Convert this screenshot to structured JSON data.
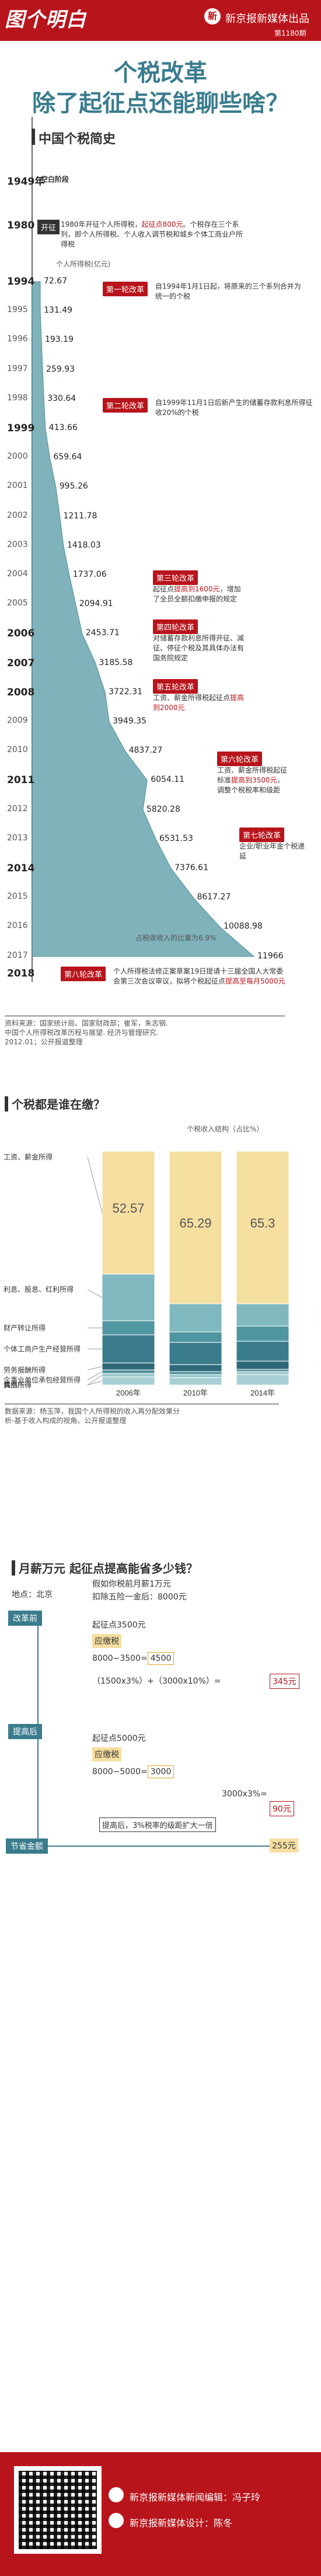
{
  "header": {
    "logo": "图个明白",
    "publisher": "新京报新媒体出品",
    "issue": "第1180期",
    "mark": "新"
  },
  "title": {
    "line1": "个税改革",
    "line2": "除了起征点还能聊些啥？"
  },
  "history": {
    "section_title": "中国个税简史",
    "y1949": "1949年",
    "blank_period": "空白阶段",
    "y1980": "1980",
    "tag_start": "开征",
    "note1980_a": "1980年开征个人所得税，",
    "note1980_red": "起征点800元",
    "note1980_b": "。个税存在三个系列，即个人所得税、个人收入调节税和城乡个体工商业户所得税",
    "unit_label": "个人所得税(亿元)",
    "y1994": "1994",
    "tag1": "第一轮改革",
    "note1994": "自1994年1月1日起，将原来的三个系列合并为统一的个税",
    "y1999": "1999",
    "tag2": "第二轮改革",
    "note1999": "自1999年11月1日后新产生的储蓄存款利息所得征收20%的个税",
    "y2005": "2005",
    "tag3": "第三轮改革",
    "note2005_a": "起征点",
    "note2005_red": "提高到1600元",
    "note2005_b": "，增加了全员全额扣缴申报的规定",
    "y2007": "2007",
    "tag4": "第四轮改革",
    "note2007": "对储蓄存款利息所得开征、减征、停征个税及其具体办法有国务院规定",
    "y2008": "2008",
    "tag5": "第五轮改革",
    "note2008_a": "工资、薪金所得税起征点",
    "note2008_red": "提高到2000元",
    "y2011": "2011",
    "tag6": "第六轮改革",
    "note2011_a": "工资、薪金所得税起征标准",
    "note2011_red": "提高到3500元",
    "note2011_b": "，调整个税税率和级距",
    "y2014": "2014",
    "tag7": "第七轮改革",
    "note2014": "企业/职业年金个税递延",
    "y2018": "2018",
    "tag8": "第八轮改革",
    "note2018_a": "个人所得税法修正案草案19日提请十三届全国人大常委会第三次会议审议，拟将个税起征点",
    "note2018_red": "提高至每月5000元",
    "share_note": "占税收收入的比重为6.9%",
    "source": "资料来源：国家统计局、国家财政部；崔军，朱志钢. 中国个人所得税改革历程与展望. 经济与管理研究. 2012.01；公开报道整理",
    "rows": [
      {
        "year": "1994",
        "value": "72.67"
      },
      {
        "year": "1995",
        "value": "131.49"
      },
      {
        "year": "1996",
        "value": "193.19"
      },
      {
        "year": "1997",
        "value": "259.93"
      },
      {
        "year": "1998",
        "value": "330.64"
      },
      {
        "year": "1999",
        "value": "413.66"
      },
      {
        "year": "2000",
        "value": "659.64"
      },
      {
        "year": "2001",
        "value": "995.26"
      },
      {
        "year": "2002",
        "value": "1211.78"
      },
      {
        "year": "2003",
        "value": "1418.03"
      },
      {
        "year": "2004",
        "value": "1737.06"
      },
      {
        "year": "2005",
        "value": "2094.91"
      },
      {
        "year": "2006",
        "value": "2453.71"
      },
      {
        "year": "2007",
        "value": "3185.58"
      },
      {
        "year": "2008",
        "value": "3722.31"
      },
      {
        "year": "2009",
        "value": "3949.35"
      },
      {
        "year": "2010",
        "value": "4837.27"
      },
      {
        "year": "2011",
        "value": "6054.11"
      },
      {
        "year": "2012",
        "value": "5820.28"
      },
      {
        "year": "2013",
        "value": "6531.53"
      },
      {
        "year": "2014",
        "value": "7376.61"
      },
      {
        "year": "2015",
        "value": "8617.27"
      },
      {
        "year": "2016",
        "value": "10088.98"
      },
      {
        "year": "2017",
        "value": "11966"
      }
    ]
  },
  "chart_data": {
    "type": "bar",
    "title": "个税都是谁在缴？",
    "ylabel": "个税收入结构（占比%）",
    "categories": [
      "2006年",
      "2010年",
      "2014年"
    ],
    "segment_labels": [
      "工资、薪金所得",
      "利息、股息、红利所得",
      "财产转让所得",
      "个体工商户生产经营所得",
      "劳务报酬所得",
      "企事业单位承包经营所得",
      "偶然所得",
      "其他所得"
    ],
    "wage_values": [
      52.57,
      65.29,
      65.3
    ],
    "segments": [
      [
        52.57,
        20.0,
        6.0,
        12.0,
        3.0,
        1.5,
        1.5,
        3.43
      ],
      [
        65.29,
        12.0,
        4.5,
        9.5,
        3.0,
        1.2,
        1.4,
        3.11
      ],
      [
        65.3,
        9.5,
        6.5,
        8.5,
        3.5,
        1.0,
        1.3,
        4.4
      ]
    ],
    "colors": [
      "#f5dfa0",
      "#7fb8bf",
      "#4f96a0",
      "#3a7c8e",
      "#2f6878",
      "#4f8f9a",
      "#9cc9cd",
      "#a8d0d4"
    ],
    "source": "数据来源：杨玉萍，我国个人所得税的收入再分配效果分析-基于收入构成的视角、公开报道整理"
  },
  "calc": {
    "title": "月薪万元 起征点提高能省多少钱？",
    "location": "地点：北京",
    "assume": "假如你税前月薪1万元",
    "deduct": "扣除五险一金后：8000元",
    "before": "改革前",
    "after": "提高后",
    "saving": "节省金额",
    "b_threshold": "起征点3500元",
    "b_taxable": "应缴税",
    "b_expr1": "8000−3500=",
    "b_res1": "4500",
    "b_expr2": "（1500x3%）+（3000x10%）=",
    "b_res2": "345元",
    "a_threshold": "起征点5000元",
    "a_taxable": "应缴税",
    "a_expr1": "8000−5000=",
    "a_res1": "3000",
    "a_expr2": "3000x3%=",
    "a_res2": "90元",
    "a_note": "提高后，3%税率的级距扩大一倍",
    "save_val": "255元"
  },
  "footer": {
    "editor": "新京报新媒体新闻编辑：冯子玲",
    "designer": "新京报新媒体设计：陈冬"
  }
}
